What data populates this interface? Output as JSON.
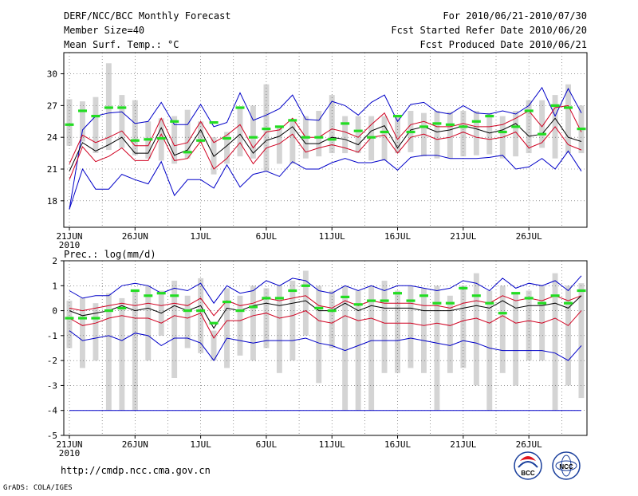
{
  "header": {
    "left": [
      "DERF/NCC/BCC Monthly Forecast",
      "Member Size=40",
      "Mean Surf. Temp.: °C"
    ],
    "right": [
      "For 2010/06/21-2010/07/30",
      "Fcst Started Refer Date 2010/06/20",
      "Fcst Produced Date 2010/06/21"
    ]
  },
  "footer": {
    "url": "http://cmdp.ncc.cma.gov.cn",
    "credit": "GrADS: COLA/IGES",
    "logo_bcc": "BCC",
    "logo_ncc": "NCC"
  },
  "colors": {
    "background": "#ffffff",
    "box": "#d4d4d4",
    "mean": "#000000",
    "inner_band": "#d00020",
    "outer_band": "#0000c8",
    "observed": "#22dd22",
    "grid": "#555555"
  },
  "chart_data": [
    {
      "type": "box-ensemble",
      "title": "Mean Surf. Temp.: °C",
      "ylim": [
        15.5,
        32
      ],
      "yticks": [
        18,
        21,
        24,
        27,
        30
      ],
      "ytick_labels": [
        "18",
        "21",
        "24",
        "27",
        "30"
      ],
      "x_days": 40,
      "xticks": [
        1,
        6,
        11,
        16,
        21,
        26,
        31,
        36
      ],
      "xtick_labels": [
        "21JUN",
        "26JUN",
        "1JUL",
        "6JUL",
        "11JUL",
        "16JUL",
        "21JUL",
        "26JUL"
      ],
      "year_label": "2010",
      "grid": true,
      "box_low": [
        23.2,
        23.6,
        22.5,
        22.8,
        23.0,
        22.3,
        22.0,
        21.8,
        21.5,
        22.0,
        23.5,
        20.5,
        21.5,
        22.2,
        22.0,
        20.8,
        21.5,
        21.5,
        22.0,
        22.2,
        22.5,
        22.5,
        22.5,
        21.8,
        21.8,
        22.5,
        22.6,
        22.2,
        22.0,
        22.0,
        22.2,
        22.3,
        22.4,
        22.0,
        22.2,
        22.5,
        23.0,
        22.0,
        22.5,
        22.5
      ],
      "box_high": [
        27.6,
        27.4,
        27.8,
        31.0,
        28.0,
        27.5,
        25.5,
        25.8,
        26.0,
        26.6,
        25.5,
        24.0,
        24.5,
        26.8,
        27.0,
        29.0,
        25.0,
        25.5,
        26.0,
        26.5,
        28.0,
        26.0,
        26.0,
        26.0,
        26.0,
        26.0,
        26.5,
        26.3,
        26.5,
        26.4,
        26.5,
        26.5,
        26.3,
        26.0,
        26.5,
        27.5,
        27.5,
        28.0,
        29.0,
        27.0
      ],
      "observed": [
        25.2,
        26.5,
        26.0,
        26.8,
        26.8,
        23.7,
        23.8,
        23.9,
        25.5,
        22.6,
        23.7,
        25.4,
        23.9,
        26.8,
        24.0,
        24.8,
        25.0,
        25.6,
        24.0,
        24.0,
        23.8,
        25.3,
        24.6,
        24.0,
        24.5,
        26.0,
        24.5,
        25.0,
        25.3,
        25.2,
        25.0,
        25.5,
        26.0,
        24.5,
        25.0,
        26.5,
        24.3,
        27.0,
        26.8,
        24.8
      ],
      "series": [
        {
          "name": "max",
          "values": [
            17.2,
            24.7,
            26.0,
            26.3,
            26.4,
            25.3,
            25.5,
            27.3,
            25.2,
            25.2,
            27.1,
            25.0,
            25.4,
            28.2,
            25.6,
            26.1,
            26.7,
            28.0,
            25.7,
            25.6,
            27.4,
            27.0,
            26.1,
            27.3,
            28.0,
            25.5,
            27.1,
            27.3,
            26.4,
            26.2,
            27.0,
            26.3,
            26.2,
            26.5,
            26.2,
            27.0,
            28.7,
            26.0,
            28.6,
            26.3
          ]
        },
        {
          "name": "p90",
          "values": [
            21.5,
            24.2,
            23.5,
            24.0,
            24.6,
            23.2,
            23.2,
            25.8,
            23.2,
            23.5,
            25.5,
            23.5,
            24.2,
            25.2,
            23.0,
            24.5,
            24.7,
            25.8,
            24.0,
            24.0,
            24.8,
            24.5,
            24.0,
            25.2,
            26.3,
            23.8,
            25.2,
            25.5,
            25.0,
            25.0,
            25.3,
            25.0,
            25.0,
            25.2,
            25.8,
            26.5,
            25.0,
            26.8,
            27.0,
            24.5
          ]
        },
        {
          "name": "mean",
          "values": [
            20.8,
            23.5,
            22.7,
            23.3,
            24.0,
            22.5,
            22.5,
            24.9,
            22.3,
            22.8,
            24.7,
            22.2,
            23.2,
            24.3,
            22.5,
            23.7,
            24.1,
            25.0,
            23.4,
            23.4,
            24.0,
            23.8,
            23.3,
            24.6,
            25.1,
            23.0,
            24.7,
            25.0,
            24.5,
            24.7,
            25.1,
            24.8,
            24.4,
            24.7,
            25.3,
            24.1,
            24.3,
            25.8,
            24.0,
            23.6
          ]
        },
        {
          "name": "p10",
          "values": [
            20.0,
            23.1,
            21.7,
            22.2,
            23.0,
            21.8,
            21.8,
            24.3,
            21.8,
            22.0,
            23.6,
            21.0,
            22.0,
            23.5,
            21.5,
            23.0,
            23.4,
            24.3,
            22.6,
            23.0,
            23.3,
            23.0,
            22.6,
            24.0,
            24.2,
            22.5,
            24.0,
            24.3,
            23.8,
            24.0,
            24.5,
            24.0,
            23.8,
            24.0,
            24.5,
            23.0,
            23.5,
            25.0,
            23.3,
            22.8
          ]
        },
        {
          "name": "min",
          "values": [
            17.2,
            21.0,
            19.1,
            19.1,
            20.5,
            20.0,
            19.6,
            21.7,
            18.5,
            20.0,
            20.0,
            19.2,
            21.4,
            19.3,
            20.5,
            20.8,
            20.3,
            21.7,
            21.0,
            21.0,
            21.6,
            22.0,
            21.6,
            21.6,
            21.9,
            20.9,
            22.1,
            22.3,
            22.3,
            22.0,
            22.0,
            22.0,
            22.1,
            22.3,
            21.0,
            21.2,
            22.0,
            21.0,
            22.7,
            20.8
          ]
        }
      ]
    },
    {
      "type": "box-ensemble",
      "title": "Prec.: log(mm/d)",
      "ylim": [
        -5,
        2
      ],
      "yticks": [
        -5,
        -4,
        -3,
        -2,
        -1,
        0,
        1,
        2
      ],
      "ytick_labels": [
        "-5",
        "-4",
        "-3",
        "-2",
        "-1",
        "0",
        "1",
        "2"
      ],
      "x_days": 40,
      "xticks": [
        1,
        6,
        11,
        16,
        21,
        26,
        31,
        36
      ],
      "xtick_labels": [
        "21JUN",
        "26JUN",
        "1JUL",
        "6JUL",
        "11JUL",
        "16JUL",
        "21JUL",
        "26JUL"
      ],
      "year_label": "2010",
      "grid": true,
      "box_low": [
        -1.5,
        -2.3,
        -2.0,
        -4.0,
        -4.0,
        -4.0,
        -2.0,
        -1.0,
        -2.7,
        -1.5,
        -1.7,
        -2.0,
        -2.3,
        -1.8,
        -2.0,
        -1.5,
        -2.5,
        -2.0,
        -1.0,
        -2.9,
        -1.5,
        -4.0,
        -4.0,
        -4.0,
        -2.5,
        -2.5,
        -2.3,
        -2.5,
        -4.0,
        -2.5,
        -2.3,
        -3.0,
        -4.0,
        -2.5,
        -3.0,
        -2.0,
        -2.0,
        -4.0,
        -3.0,
        -3.5
      ],
      "box_high": [
        0.4,
        0.5,
        0.3,
        0.7,
        0.5,
        0.8,
        1.0,
        0.8,
        1.2,
        0.6,
        1.3,
        -0.8,
        0.9,
        0.6,
        1.0,
        0.9,
        1.0,
        1.2,
        1.6,
        1.0,
        0.8,
        1.0,
        0.8,
        1.0,
        1.2,
        0.8,
        1.0,
        0.9,
        1.0,
        0.6,
        1.0,
        1.5,
        0.8,
        1.0,
        0.7,
        0.8,
        1.0,
        1.5,
        1.0,
        1.1
      ],
      "observed": [
        -0.3,
        -0.3,
        -0.3,
        0.0,
        0.1,
        0.8,
        0.6,
        0.7,
        0.6,
        0.0,
        0.0,
        -0.5,
        0.35,
        0.0,
        0.15,
        0.5,
        0.5,
        0.8,
        1.0,
        0.1,
        0.0,
        0.55,
        0.25,
        0.4,
        0.4,
        0.7,
        0.4,
        0.6,
        0.3,
        0.3,
        0.9,
        0.6,
        0.3,
        -0.1,
        0.7,
        0.5,
        0.3,
        0.6,
        0.3,
        0.8
      ]
    }
  ],
  "precip_lines": {
    "max": [
      0.8,
      0.5,
      0.6,
      0.6,
      1.0,
      1.1,
      1.0,
      0.7,
      0.9,
      0.8,
      1.1,
      0.3,
      1.0,
      0.7,
      0.8,
      1.2,
      1.0,
      1.3,
      1.2,
      0.8,
      0.7,
      1.0,
      0.8,
      1.0,
      0.8,
      1.0,
      1.0,
      0.9,
      0.8,
      0.9,
      1.2,
      1.1,
      0.8,
      1.3,
      0.9,
      1.1,
      1.0,
      1.2,
      0.8,
      1.4
    ],
    "p90": [
      0.1,
      0.0,
      0.1,
      0.2,
      0.3,
      0.2,
      0.3,
      0.2,
      0.3,
      0.2,
      0.5,
      -0.2,
      0.4,
      0.2,
      0.3,
      0.5,
      0.4,
      0.5,
      0.6,
      0.2,
      0.1,
      0.4,
      0.2,
      0.4,
      0.3,
      0.3,
      0.3,
      0.2,
      0.2,
      0.1,
      0.3,
      0.4,
      0.3,
      0.6,
      0.4,
      0.5,
      0.4,
      0.6,
      0.4,
      0.6
    ],
    "mean": [
      0.0,
      -0.2,
      -0.1,
      0.0,
      0.2,
      0.0,
      0.1,
      -0.1,
      0.2,
      0.0,
      0.2,
      -0.7,
      0.1,
      0.0,
      0.2,
      0.3,
      0.2,
      0.3,
      0.4,
      0.0,
      0.0,
      0.3,
      0.0,
      0.2,
      0.1,
      0.1,
      0.1,
      0.0,
      0.0,
      0.0,
      0.1,
      0.2,
      0.1,
      0.4,
      0.1,
      0.2,
      0.2,
      0.3,
      0.1,
      0.6
    ],
    "p10": [
      -0.3,
      -0.6,
      -0.5,
      -0.3,
      -0.2,
      -0.3,
      -0.3,
      -0.5,
      -0.2,
      -0.3,
      -0.1,
      -1.1,
      -0.4,
      -0.4,
      -0.2,
      -0.1,
      -0.3,
      -0.2,
      0.0,
      -0.4,
      -0.5,
      -0.2,
      -0.4,
      -0.3,
      -0.5,
      -0.5,
      -0.5,
      -0.6,
      -0.5,
      -0.6,
      -0.4,
      -0.3,
      -0.5,
      -0.2,
      -0.5,
      -0.4,
      -0.5,
      -0.3,
      -0.6,
      0.0
    ],
    "min": [
      -0.8,
      -1.2,
      -1.1,
      -1.0,
      -1.2,
      -0.9,
      -1.0,
      -1.4,
      -1.1,
      -1.1,
      -1.3,
      -2.0,
      -1.1,
      -1.2,
      -1.3,
      -1.2,
      -1.2,
      -1.2,
      -1.1,
      -1.3,
      -1.4,
      -1.6,
      -1.4,
      -1.2,
      -1.2,
      -1.2,
      -1.1,
      -1.2,
      -1.3,
      -1.4,
      -1.2,
      -1.3,
      -1.5,
      -1.6,
      -1.6,
      -1.6,
      -1.6,
      -1.7,
      -2.0,
      -1.4
    ],
    "floor": -4
  }
}
